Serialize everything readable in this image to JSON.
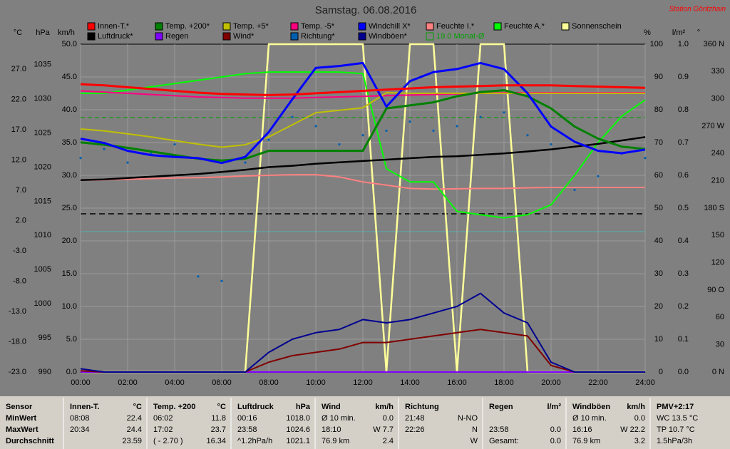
{
  "chart_data": {
    "type": "line",
    "title": "Samstag. 06.08.2016",
    "station": "Station Göritzhain",
    "x": [
      0,
      1,
      2,
      3,
      4,
      5,
      6,
      7,
      8,
      9,
      10,
      11,
      12,
      13,
      14,
      15,
      16,
      17,
      18,
      19,
      20,
      21,
      22,
      23,
      24
    ],
    "xlim": [
      0,
      24
    ],
    "xticks": [
      {
        "value": 0,
        "label": "00:00"
      },
      {
        "value": 2,
        "label": "02:00"
      },
      {
        "value": 4,
        "label": "04:00"
      },
      {
        "value": 6,
        "label": "06:00"
      },
      {
        "value": 8,
        "label": "08:00"
      },
      {
        "value": 10,
        "label": "10:00"
      },
      {
        "value": 12,
        "label": "12:00"
      },
      {
        "value": 14,
        "label": "14:00"
      },
      {
        "value": 16,
        "label": "16:00"
      },
      {
        "value": 18,
        "label": "18:00"
      },
      {
        "value": 20,
        "label": "20:00"
      },
      {
        "value": 22,
        "label": "22:00"
      },
      {
        "value": 24,
        "label": "24:00"
      }
    ],
    "grid": true,
    "grid_axis": 2,
    "axes": [
      {
        "label": "°C",
        "lim": [
          -23,
          31.1
        ],
        "ticks": [
          {
            "value": -23,
            "label": "-23.0"
          },
          {
            "value": -18,
            "label": "-18.0"
          },
          {
            "value": -13,
            "label": "-13.0"
          },
          {
            "value": -8,
            "label": "-8.0"
          },
          {
            "value": -3,
            "label": "-3.0"
          },
          {
            "value": 2,
            "label": "2.0"
          },
          {
            "value": 7,
            "label": "7.0"
          },
          {
            "value": 12,
            "label": "12.0"
          },
          {
            "value": 17,
            "label": "17.0"
          },
          {
            "value": 22,
            "label": "22.0"
          },
          {
            "value": 27,
            "label": "27.0"
          }
        ]
      },
      {
        "label": "hPa",
        "lim": [
          990,
          1038
        ],
        "ticks": [
          990,
          995,
          1000,
          1005,
          1010,
          1015,
          1020,
          1025,
          1030,
          1035
        ]
      },
      {
        "label": "km/h",
        "lim": [
          0,
          50
        ],
        "ticks": [
          {
            "value": 0,
            "label": "0.0"
          },
          {
            "value": 5,
            "label": "5.0"
          },
          {
            "value": 10,
            "label": "10.0"
          },
          {
            "value": 15,
            "label": "15.0"
          },
          {
            "value": 20,
            "label": "20.0"
          },
          {
            "value": 25,
            "label": "25.0"
          },
          {
            "value": 30,
            "label": "30.0"
          },
          {
            "value": 35,
            "label": "35.0"
          },
          {
            "value": 40,
            "label": "40.0"
          },
          {
            "value": 45,
            "label": "45.0"
          },
          {
            "value": 50,
            "label": "50.0"
          }
        ]
      },
      {
        "label": "%",
        "lim": [
          0,
          100
        ],
        "ticks": [
          0,
          10,
          20,
          30,
          40,
          50,
          60,
          70,
          80,
          90,
          100
        ]
      },
      {
        "label": "l/m²",
        "lim": [
          0,
          1
        ],
        "ticks": [
          {
            "value": 0,
            "label": "0.0"
          },
          0.1,
          0.2,
          0.3,
          0.4,
          0.5,
          0.6,
          0.7,
          0.8,
          0.9,
          {
            "value": 1,
            "label": "1.0"
          }
        ]
      },
      {
        "label": "°",
        "lim": [
          0,
          360
        ],
        "ticks": [
          {
            "value": 0,
            "label": "0  N"
          },
          30,
          60,
          {
            "value": 90,
            "label": "90  O"
          },
          120,
          150,
          {
            "value": 180,
            "label": "180  S"
          },
          210,
          240,
          {
            "value": 270,
            "label": "270  W"
          },
          300,
          330,
          {
            "value": 360,
            "label": "360  N"
          }
        ]
      }
    ],
    "series": [
      {
        "name": "Innen-T.*",
        "color": "#ff0000",
        "axis": 0,
        "type": "line",
        "width": 3,
        "values": [
          24.5,
          24.3,
          24.0,
          23.7,
          23.4,
          23.1,
          22.9,
          22.8,
          22.7,
          22.8,
          23.0,
          23.2,
          23.4,
          23.6,
          23.8,
          24.0,
          24.1,
          24.2,
          24.3,
          24.3,
          24.3,
          24.2,
          24.1,
          24.0,
          23.9
        ]
      },
      {
        "name": "Temp. +200*",
        "color": "#008000",
        "axis": 0,
        "type": "line",
        "width": 3,
        "values": [
          14.9,
          14.5,
          14.0,
          13.4,
          12.8,
          12.2,
          11.9,
          12.2,
          13.5,
          13.5,
          13.5,
          13.5,
          13.5,
          20.5,
          21.0,
          21.5,
          22.5,
          23.2,
          23.5,
          22.5,
          20.5,
          17.5,
          15.5,
          14.2,
          13.8
        ]
      },
      {
        "name": "Temp. +5*",
        "color": "#c0c000",
        "axis": 0,
        "type": "line",
        "width": 2,
        "values": [
          17.1,
          16.8,
          16.3,
          15.8,
          15.2,
          14.6,
          14.1,
          14.5,
          15.8,
          17.8,
          19.8,
          20.2,
          20.6,
          23.1,
          23.0,
          23.0,
          23.0,
          23.0,
          23.0,
          23.0,
          23.0,
          23.0,
          23.0,
          23.0,
          23.0
        ]
      },
      {
        "name": "Temp. -5*",
        "color": "#ff0080",
        "axis": 0,
        "type": "line",
        "width": 2,
        "values": [
          23.4,
          23.2,
          23.0,
          22.8,
          22.6,
          22.4,
          22.3,
          22.2,
          22.2,
          22.2,
          22.3,
          22.4,
          22.5,
          22.6,
          22.7,
          22.8,
          22.9,
          23.0,
          23.1,
          23.1,
          23.1,
          23.1,
          23.1,
          23.1,
          23.1
        ]
      },
      {
        "name": "Windchill X*",
        "color": "#0000ff",
        "axis": 0,
        "type": "line",
        "width": 3,
        "values": [
          15.5,
          14.8,
          13.5,
          12.8,
          12.5,
          12.3,
          11.5,
          12.5,
          16.6,
          22.0,
          27.2,
          27.5,
          28.0,
          20.8,
          25.0,
          26.5,
          27.0,
          28.0,
          27.0,
          23.0,
          17.5,
          15.0,
          13.5,
          13.1,
          13.7
        ]
      },
      {
        "name": "Feuchte I.*",
        "color": "#ff8080",
        "axis": 3,
        "type": "line",
        "width": 2,
        "values": [
          58.5,
          58.6,
          58.8,
          59.0,
          59.2,
          59.3,
          59.5,
          59.8,
          60.0,
          60.2,
          60.2,
          59.5,
          58.0,
          57.0,
          56.0,
          55.8,
          55.9,
          56.0,
          56.0,
          56.2,
          56.3,
          56.3,
          56.3,
          56.3,
          56.3
        ]
      },
      {
        "name": "Feuchte A.*",
        "color": "#00ff00",
        "axis": 3,
        "type": "line",
        "width": 2,
        "values": [
          85,
          85,
          86,
          87,
          88,
          89,
          90,
          91,
          91.5,
          91.5,
          91.5,
          91.5,
          91,
          62,
          58,
          58,
          49,
          48,
          47,
          48,
          51,
          60,
          70,
          78,
          83
        ]
      },
      {
        "name": "Sonnenschein",
        "color": "#ffff99",
        "axis": 3,
        "type": "line",
        "width": 2.5,
        "values": [
          0,
          0,
          0,
          0,
          0,
          0,
          0,
          0,
          100,
          100,
          100,
          100,
          100,
          0,
          100,
          100,
          0,
          100,
          100,
          0,
          0,
          0,
          0,
          0,
          0
        ]
      },
      {
        "name": "Luftdruck*",
        "color": "#000000",
        "axis": 1,
        "type": "line",
        "width": 2.5,
        "values": [
          1018.1,
          1018.2,
          1018.4,
          1018.6,
          1018.8,
          1019.0,
          1019.3,
          1019.6,
          1020.0,
          1020.2,
          1020.5,
          1020.7,
          1020.9,
          1021.1,
          1021.3,
          1021.5,
          1021.6,
          1021.8,
          1022.0,
          1022.3,
          1022.6,
          1023.0,
          1023.4,
          1023.9,
          1024.4
        ]
      },
      {
        "name": "Regen",
        "color": "#8000ff",
        "axis": 4,
        "type": "line",
        "width": 2,
        "values": [
          0,
          0,
          0,
          0,
          0,
          0,
          0,
          0,
          0,
          0,
          0,
          0,
          0,
          0,
          0,
          0,
          0,
          0,
          0,
          0,
          0,
          0,
          0,
          0,
          0
        ]
      },
      {
        "name": "Wind*",
        "color": "#800000",
        "axis": 2,
        "type": "line",
        "width": 2,
        "values": [
          0.2,
          0,
          0,
          0,
          0,
          0,
          0,
          0,
          1.5,
          2.5,
          3,
          3.5,
          4.5,
          4.5,
          5,
          5.5,
          6,
          6.5,
          6,
          5.5,
          1,
          0,
          0,
          0,
          0
        ]
      },
      {
        "name": "Richtung*",
        "color": "#0060b0",
        "axis": 5,
        "type": "scatter",
        "values": [
          235,
          245,
          230,
          240,
          250,
          105,
          100,
          230,
          255,
          280,
          270,
          250,
          260,
          265,
          275,
          265,
          270,
          280,
          285,
          260,
          250,
          200,
          215,
          240,
          235
        ]
      },
      {
        "name": "Windböen*",
        "color": "#000090",
        "axis": 2,
        "type": "line",
        "width": 2,
        "values": [
          0.5,
          0,
          0,
          0,
          0,
          0,
          0,
          0,
          3,
          5,
          6,
          6.5,
          8,
          7.5,
          8,
          9,
          10,
          12,
          9,
          7.5,
          1.5,
          0,
          0,
          0,
          0
        ]
      }
    ],
    "monthly_average": {
      "name": "19.0 Monat-Ø",
      "value": 19.0,
      "axis": 0,
      "color": "#00a000"
    }
  },
  "table": {
    "groups": [
      {
        "header": [
          "Sensor"
        ],
        "rows": [
          [
            "MinWert"
          ],
          [
            "MaxWert"
          ],
          [
            "Durchschnitt"
          ]
        ]
      },
      {
        "header": [
          "Innen-T.",
          "°C"
        ],
        "rows": [
          [
            "08:08",
            "22.4"
          ],
          [
            "20:34",
            "24.4"
          ],
          [
            null,
            "23.59"
          ]
        ]
      },
      {
        "header": [
          "Temp. +200",
          "°C"
        ],
        "rows": [
          [
            "06:02",
            "11.8"
          ],
          [
            "17:02",
            "23.7"
          ],
          [
            "( - 2.70 )",
            "16.34"
          ]
        ]
      },
      {
        "header": [
          "Luftdruck",
          "hPa"
        ],
        "rows": [
          [
            "00:16",
            "1018.0"
          ],
          [
            "23:58",
            "1024.6"
          ],
          [
            "^1.2hPa/h",
            "1021.1"
          ]
        ]
      },
      {
        "header": [
          "Wind",
          "km/h"
        ],
        "rows": [
          [
            "Ø 10 min.",
            "0.0"
          ],
          [
            "18:10",
            "W 7.7"
          ],
          [
            "76.9 km",
            "2.4"
          ]
        ]
      },
      {
        "header": [
          "Richtung",
          null
        ],
        "rows": [
          [
            "21:48",
            "N-NO"
          ],
          [
            "22:26",
            "N"
          ],
          [
            null,
            "W"
          ]
        ]
      },
      {
        "header": [
          "Regen",
          "l/m²"
        ],
        "rows": [
          [
            null,
            null
          ],
          [
            "23:58",
            "0.0"
          ],
          [
            "Gesamt:",
            "0.0"
          ]
        ]
      },
      {
        "header": [
          "Windböen",
          "km/h"
        ],
        "rows": [
          [
            "Ø 10 min.",
            "0.0"
          ],
          [
            "16:16",
            "W 22.2"
          ],
          [
            "76.9 km",
            "3.2"
          ]
        ]
      },
      {
        "header": [
          "PMV+2:17"
        ],
        "rows": [
          [
            "WC 13.5 °C"
          ],
          [
            "TP 10.7 °C"
          ],
          [
            "1.5hPa/3h"
          ]
        ]
      }
    ]
  }
}
